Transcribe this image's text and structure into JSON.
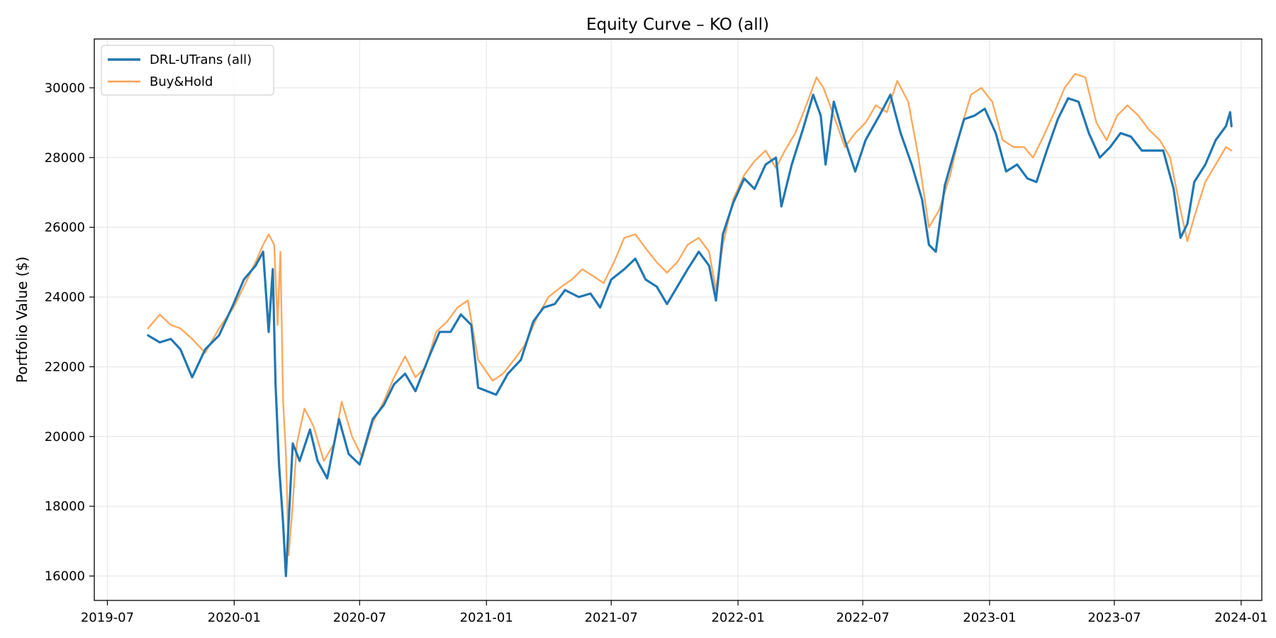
{
  "chart_data": {
    "type": "line",
    "title": "Equity Curve – KO (all)",
    "xlabel": "",
    "ylabel": "Portfolio Value ($)",
    "xlim": [
      "2019-06-12",
      "2024-01-31"
    ],
    "ylim": [
      15300,
      31400
    ],
    "x_ticks": [
      "2019-07",
      "2020-01",
      "2020-07",
      "2021-01",
      "2021-07",
      "2022-01",
      "2022-07",
      "2023-01",
      "2023-07",
      "2024-01"
    ],
    "y_ticks": [
      16000,
      18000,
      20000,
      22000,
      24000,
      26000,
      28000,
      30000
    ],
    "grid": true,
    "legend_position": "top-left",
    "series": [
      {
        "name": "DRL-UTrans (all)",
        "color": "#1f77b4",
        "points": [
          [
            "2019-08-29",
            22900
          ],
          [
            "2019-09-15",
            22700
          ],
          [
            "2019-10-01",
            22800
          ],
          [
            "2019-10-15",
            22500
          ],
          [
            "2019-11-01",
            21700
          ],
          [
            "2019-11-20",
            22500
          ],
          [
            "2019-12-10",
            22900
          ],
          [
            "2019-12-31",
            23800
          ],
          [
            "2020-01-15",
            24500
          ],
          [
            "2020-02-01",
            24900
          ],
          [
            "2020-02-12",
            25300
          ],
          [
            "2020-02-20",
            23000
          ],
          [
            "2020-02-26",
            24800
          ],
          [
            "2020-03-01",
            21500
          ],
          [
            "2020-03-06",
            19200
          ],
          [
            "2020-03-12",
            17500
          ],
          [
            "2020-03-16",
            16000
          ],
          [
            "2020-03-21",
            17900
          ],
          [
            "2020-03-26",
            19800
          ],
          [
            "2020-04-05",
            19300
          ],
          [
            "2020-04-20",
            20200
          ],
          [
            "2020-05-01",
            19300
          ],
          [
            "2020-05-15",
            18800
          ],
          [
            "2020-06-01",
            20500
          ],
          [
            "2020-06-15",
            19500
          ],
          [
            "2020-07-01",
            19200
          ],
          [
            "2020-07-20",
            20500
          ],
          [
            "2020-08-05",
            20900
          ],
          [
            "2020-08-20",
            21500
          ],
          [
            "2020-09-05",
            21800
          ],
          [
            "2020-09-20",
            21300
          ],
          [
            "2020-10-10",
            22300
          ],
          [
            "2020-10-25",
            23000
          ],
          [
            "2020-11-10",
            23000
          ],
          [
            "2020-11-25",
            23500
          ],
          [
            "2020-12-10",
            23200
          ],
          [
            "2020-12-20",
            21400
          ],
          [
            "2021-01-15",
            21200
          ],
          [
            "2021-02-01",
            21800
          ],
          [
            "2021-02-20",
            22200
          ],
          [
            "2021-03-10",
            23300
          ],
          [
            "2021-03-25",
            23700
          ],
          [
            "2021-04-10",
            23800
          ],
          [
            "2021-04-25",
            24200
          ],
          [
            "2021-05-15",
            24000
          ],
          [
            "2021-06-01",
            24100
          ],
          [
            "2021-06-15",
            23700
          ],
          [
            "2021-07-01",
            24500
          ],
          [
            "2021-07-20",
            24800
          ],
          [
            "2021-08-05",
            25100
          ],
          [
            "2021-08-20",
            24500
          ],
          [
            "2021-09-05",
            24300
          ],
          [
            "2021-09-20",
            23800
          ],
          [
            "2021-10-05",
            24300
          ],
          [
            "2021-10-20",
            24800
          ],
          [
            "2021-11-05",
            25300
          ],
          [
            "2021-11-20",
            24900
          ],
          [
            "2021-11-30",
            23900
          ],
          [
            "2021-12-10",
            25800
          ],
          [
            "2021-12-25",
            26700
          ],
          [
            "2022-01-10",
            27400
          ],
          [
            "2022-01-25",
            27100
          ],
          [
            "2022-02-10",
            27800
          ],
          [
            "2022-02-25",
            28000
          ],
          [
            "2022-03-05",
            26600
          ],
          [
            "2022-03-20",
            27800
          ],
          [
            "2022-04-05",
            28800
          ],
          [
            "2022-04-20",
            29800
          ],
          [
            "2022-05-01",
            29200
          ],
          [
            "2022-05-08",
            27800
          ],
          [
            "2022-05-20",
            29600
          ],
          [
            "2022-06-05",
            28500
          ],
          [
            "2022-06-20",
            27600
          ],
          [
            "2022-07-05",
            28500
          ],
          [
            "2022-07-25",
            29200
          ],
          [
            "2022-08-10",
            29800
          ],
          [
            "2022-08-25",
            28700
          ],
          [
            "2022-09-10",
            27800
          ],
          [
            "2022-09-25",
            26800
          ],
          [
            "2022-10-05",
            25500
          ],
          [
            "2022-10-15",
            25300
          ],
          [
            "2022-10-28",
            27200
          ],
          [
            "2022-11-10",
            28100
          ],
          [
            "2022-11-25",
            29100
          ],
          [
            "2022-12-10",
            29200
          ],
          [
            "2022-12-25",
            29400
          ],
          [
            "2023-01-10",
            28700
          ],
          [
            "2023-01-25",
            27600
          ],
          [
            "2023-02-10",
            27800
          ],
          [
            "2023-02-25",
            27400
          ],
          [
            "2023-03-10",
            27300
          ],
          [
            "2023-03-25",
            28200
          ],
          [
            "2023-04-10",
            29100
          ],
          [
            "2023-04-25",
            29700
          ],
          [
            "2023-05-10",
            29600
          ],
          [
            "2023-05-25",
            28700
          ],
          [
            "2023-06-10",
            28000
          ],
          [
            "2023-06-25",
            28300
          ],
          [
            "2023-07-10",
            28700
          ],
          [
            "2023-07-25",
            28600
          ],
          [
            "2023-08-10",
            28200
          ],
          [
            "2023-08-25",
            28200
          ],
          [
            "2023-09-10",
            28200
          ],
          [
            "2023-09-25",
            27100
          ],
          [
            "2023-10-05",
            25700
          ],
          [
            "2023-10-15",
            26100
          ],
          [
            "2023-10-25",
            27300
          ],
          [
            "2023-11-10",
            27800
          ],
          [
            "2023-11-25",
            28500
          ],
          [
            "2023-12-10",
            28900
          ],
          [
            "2023-12-16",
            29300
          ],
          [
            "2023-12-18",
            28900
          ]
        ]
      },
      {
        "name": "Buy&Hold",
        "color": "#ff9e4a",
        "points": [
          [
            "2019-08-29",
            23100
          ],
          [
            "2019-09-15",
            23500
          ],
          [
            "2019-10-01",
            23200
          ],
          [
            "2019-10-15",
            23100
          ],
          [
            "2019-11-01",
            22800
          ],
          [
            "2019-11-20",
            22400
          ],
          [
            "2019-12-10",
            23100
          ],
          [
            "2019-12-31",
            23700
          ],
          [
            "2020-01-15",
            24300
          ],
          [
            "2020-02-01",
            25000
          ],
          [
            "2020-02-12",
            25500
          ],
          [
            "2020-02-20",
            25800
          ],
          [
            "2020-02-28",
            25500
          ],
          [
            "2020-03-04",
            23200
          ],
          [
            "2020-03-08",
            25300
          ],
          [
            "2020-03-12",
            21000
          ],
          [
            "2020-03-16",
            19500
          ],
          [
            "2020-03-20",
            16600
          ],
          [
            "2020-03-25",
            17800
          ],
          [
            "2020-04-01",
            19800
          ],
          [
            "2020-04-12",
            20800
          ],
          [
            "2020-04-25",
            20300
          ],
          [
            "2020-05-10",
            19300
          ],
          [
            "2020-05-25",
            19800
          ],
          [
            "2020-06-05",
            21000
          ],
          [
            "2020-06-20",
            20000
          ],
          [
            "2020-07-05",
            19400
          ],
          [
            "2020-07-20",
            20400
          ],
          [
            "2020-08-05",
            21000
          ],
          [
            "2020-08-20",
            21700
          ],
          [
            "2020-09-05",
            22300
          ],
          [
            "2020-09-20",
            21700
          ],
          [
            "2020-10-05",
            22000
          ],
          [
            "2020-10-20",
            23000
          ],
          [
            "2020-11-05",
            23300
          ],
          [
            "2020-11-20",
            23700
          ],
          [
            "2020-12-05",
            23900
          ],
          [
            "2020-12-20",
            22200
          ],
          [
            "2021-01-10",
            21600
          ],
          [
            "2021-01-25",
            21800
          ],
          [
            "2021-02-10",
            22200
          ],
          [
            "2021-02-25",
            22600
          ],
          [
            "2021-03-15",
            23400
          ],
          [
            "2021-04-01",
            24000
          ],
          [
            "2021-04-20",
            24300
          ],
          [
            "2021-05-05",
            24500
          ],
          [
            "2021-05-20",
            24800
          ],
          [
            "2021-06-05",
            24600
          ],
          [
            "2021-06-20",
            24400
          ],
          [
            "2021-07-05",
            25000
          ],
          [
            "2021-07-20",
            25700
          ],
          [
            "2021-08-05",
            25800
          ],
          [
            "2021-08-20",
            25400
          ],
          [
            "2021-09-05",
            25000
          ],
          [
            "2021-09-20",
            24700
          ],
          [
            "2021-10-05",
            25000
          ],
          [
            "2021-10-20",
            25500
          ],
          [
            "2021-11-05",
            25700
          ],
          [
            "2021-11-20",
            25300
          ],
          [
            "2021-11-30",
            24200
          ],
          [
            "2021-12-10",
            25500
          ],
          [
            "2021-12-25",
            26800
          ],
          [
            "2022-01-10",
            27500
          ],
          [
            "2022-01-25",
            27900
          ],
          [
            "2022-02-10",
            28200
          ],
          [
            "2022-02-25",
            27700
          ],
          [
            "2022-03-10",
            28200
          ],
          [
            "2022-03-25",
            28700
          ],
          [
            "2022-04-10",
            29500
          ],
          [
            "2022-04-25",
            30300
          ],
          [
            "2022-05-05",
            30000
          ],
          [
            "2022-05-20",
            29200
          ],
          [
            "2022-06-05",
            28300
          ],
          [
            "2022-06-20",
            28700
          ],
          [
            "2022-07-05",
            29000
          ],
          [
            "2022-07-20",
            29500
          ],
          [
            "2022-08-05",
            29300
          ],
          [
            "2022-08-20",
            30200
          ],
          [
            "2022-09-05",
            29600
          ],
          [
            "2022-09-20",
            28000
          ],
          [
            "2022-10-05",
            26000
          ],
          [
            "2022-10-20",
            26500
          ],
          [
            "2022-11-05",
            27500
          ],
          [
            "2022-11-20",
            28800
          ],
          [
            "2022-12-05",
            29800
          ],
          [
            "2022-12-20",
            30000
          ],
          [
            "2023-01-05",
            29600
          ],
          [
            "2023-01-20",
            28500
          ],
          [
            "2023-02-05",
            28300
          ],
          [
            "2023-02-20",
            28300
          ],
          [
            "2023-03-05",
            28000
          ],
          [
            "2023-03-20",
            28600
          ],
          [
            "2023-04-05",
            29300
          ],
          [
            "2023-04-20",
            30000
          ],
          [
            "2023-05-05",
            30400
          ],
          [
            "2023-05-20",
            30300
          ],
          [
            "2023-06-05",
            29000
          ],
          [
            "2023-06-20",
            28500
          ],
          [
            "2023-07-05",
            29200
          ],
          [
            "2023-07-20",
            29500
          ],
          [
            "2023-08-05",
            29200
          ],
          [
            "2023-08-20",
            28800
          ],
          [
            "2023-09-05",
            28500
          ],
          [
            "2023-09-20",
            28000
          ],
          [
            "2023-10-05",
            26500
          ],
          [
            "2023-10-15",
            25600
          ],
          [
            "2023-10-25",
            26300
          ],
          [
            "2023-11-10",
            27300
          ],
          [
            "2023-11-25",
            27800
          ],
          [
            "2023-12-10",
            28300
          ],
          [
            "2023-12-18",
            28200
          ]
        ]
      }
    ]
  }
}
